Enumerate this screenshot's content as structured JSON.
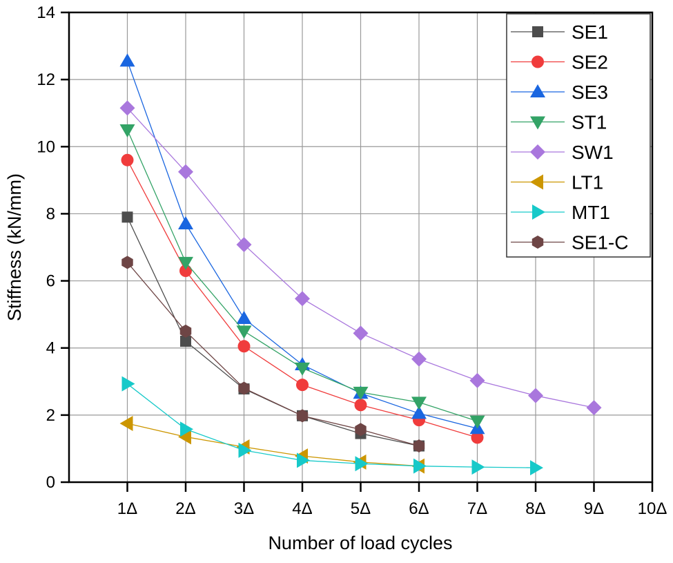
{
  "chart_data": {
    "type": "line",
    "title": "",
    "xlabel": "Number of load cycles",
    "ylabel": "Stiffness (kN/mm)",
    "xlim": [
      0,
      10
    ],
    "ylim": [
      0,
      14
    ],
    "x_ticks": [
      1,
      2,
      3,
      4,
      5,
      6,
      7,
      8,
      9,
      10
    ],
    "x_tick_labels": [
      "1Δ",
      "2Δ",
      "3Δ",
      "4Δ",
      "5Δ",
      "6Δ",
      "7Δ",
      "8Δ",
      "9Δ",
      "10Δ"
    ],
    "y_ticks": [
      0,
      2,
      4,
      6,
      8,
      10,
      12,
      14
    ],
    "y_tick_labels": [
      "0",
      "2",
      "4",
      "6",
      "8",
      "10",
      "12",
      "14"
    ],
    "grid": true,
    "legend_position": "top-right",
    "series": [
      {
        "name": "SE1",
        "marker": "square",
        "color": "#4d4d4d",
        "x": [
          1,
          2,
          3,
          4,
          5,
          6
        ],
        "values": [
          7.9,
          4.2,
          2.78,
          1.98,
          1.45,
          1.08
        ]
      },
      {
        "name": "SE2",
        "marker": "circle",
        "color": "#f03c3c",
        "x": [
          1,
          2,
          3,
          4,
          5,
          6,
          7
        ],
        "values": [
          9.6,
          6.3,
          4.05,
          2.9,
          2.3,
          1.85,
          1.33
        ]
      },
      {
        "name": "SE3",
        "marker": "triangle-up",
        "color": "#1a66e0",
        "x": [
          1,
          2,
          3,
          4,
          5,
          6,
          7
        ],
        "values": [
          12.55,
          7.7,
          4.88,
          3.5,
          2.65,
          2.05,
          1.6
        ]
      },
      {
        "name": "ST1",
        "marker": "triangle-down",
        "color": "#33a366",
        "x": [
          1,
          2,
          3,
          4,
          5,
          6,
          7
        ],
        "values": [
          10.5,
          6.55,
          4.5,
          3.4,
          2.68,
          2.38,
          1.82
        ]
      },
      {
        "name": "SW1",
        "marker": "diamond",
        "color": "#a977dd",
        "x": [
          1,
          2,
          3,
          4,
          5,
          6,
          7,
          8,
          9
        ],
        "values": [
          11.15,
          9.25,
          7.08,
          5.47,
          4.44,
          3.67,
          3.03,
          2.58,
          2.22
        ]
      },
      {
        "name": "LT1",
        "marker": "triangle-left",
        "color": "#cc9600",
        "x": [
          1,
          2,
          3,
          4,
          5,
          6
        ],
        "values": [
          1.75,
          1.35,
          1.05,
          0.78,
          0.6,
          0.48
        ]
      },
      {
        "name": "MT1",
        "marker": "triangle-right",
        "color": "#17c9c9",
        "x": [
          1,
          2,
          3,
          4,
          5,
          6,
          7,
          8
        ],
        "values": [
          2.93,
          1.58,
          0.95,
          0.65,
          0.55,
          0.48,
          0.45,
          0.43
        ]
      },
      {
        "name": "SE1-C",
        "marker": "hexagon",
        "color": "#6e4545",
        "x": [
          1,
          2,
          3,
          4,
          5,
          6
        ],
        "values": [
          6.55,
          4.5,
          2.8,
          1.98,
          1.57,
          1.08
        ]
      }
    ]
  }
}
